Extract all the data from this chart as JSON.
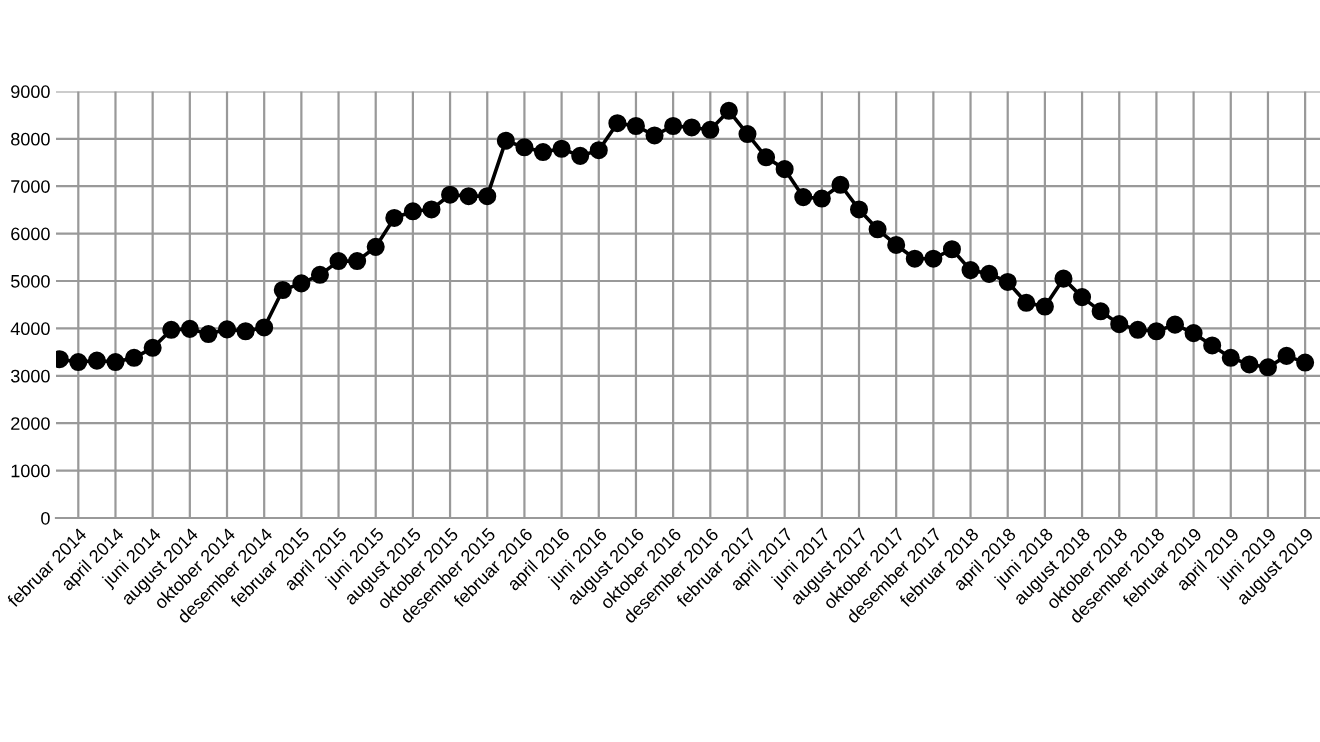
{
  "chart_data": {
    "type": "line",
    "categories": [
      null,
      "februar 2014",
      null,
      "april 2014",
      null,
      "juni 2014",
      null,
      "august 2014",
      null,
      "oktober 2014",
      null,
      "desember 2014",
      null,
      "februar 2015",
      null,
      "april 2015",
      null,
      "juni 2015",
      null,
      "august 2015",
      null,
      "oktober 2015",
      null,
      "desember 2015",
      null,
      "februar 2016",
      null,
      "april 2016",
      null,
      "juni 2016",
      null,
      "august 2016",
      null,
      "oktober 2016",
      null,
      "desember 2016",
      null,
      "februar 2017",
      null,
      "april 2017",
      null,
      "juni 2017",
      null,
      "august 2017",
      null,
      "oktober 2017",
      null,
      "desember 2017",
      null,
      "februar 2018",
      null,
      "april 2018",
      null,
      "juni 2018",
      null,
      "august 2018",
      null,
      "oktober 2018",
      null,
      "desember 2018",
      null,
      "februar 2019",
      null,
      "april 2019",
      null,
      "juni 2019",
      null,
      "august 2019"
    ],
    "series": [
      {
        "color": "#000000",
        "values": [
          3350,
          3290,
          3320,
          3290,
          3380,
          3590,
          3970,
          3990,
          3880,
          3980,
          3940,
          4020,
          4810,
          4950,
          5130,
          5420,
          5420,
          5720,
          6330,
          6470,
          6510,
          6820,
          6790,
          6790,
          7960,
          7820,
          7720,
          7790,
          7640,
          7760,
          8330,
          8270,
          8070,
          8270,
          8240,
          8190,
          8590,
          8100,
          7610,
          7360,
          6770,
          6740,
          7030,
          6510,
          6090,
          5760,
          5470,
          5470,
          5670,
          5230,
          5150,
          4980,
          4540,
          4460,
          5050,
          4660,
          4360,
          4090,
          3970,
          3940,
          4080,
          3900,
          3640,
          3380,
          3240,
          3180,
          3420,
          3280
        ]
      }
    ],
    "ylim": [
      0,
      9000
    ],
    "yticks": [
      0,
      1000,
      2000,
      3000,
      4000,
      5000,
      6000,
      7000,
      8000,
      9000
    ],
    "grid": true,
    "marker": "circle",
    "line_style": "solid"
  }
}
